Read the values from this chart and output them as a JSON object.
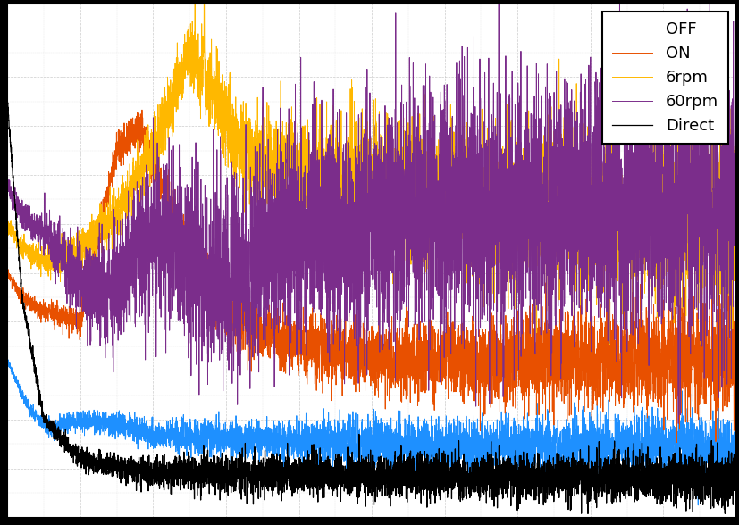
{
  "legend_labels": [
    "OFF",
    "ON",
    "6rpm",
    "60rpm",
    "Direct"
  ],
  "colors": [
    "#1E90FF",
    "#E85000",
    "#FFB800",
    "#7B2D8B",
    "#000000"
  ],
  "background_color": "#ffffff",
  "outer_background": "#000000",
  "legend_loc": "upper right",
  "legend_fontsize": 13,
  "linewidth": 0.7,
  "fig_width": 8.28,
  "fig_height": 5.88,
  "dpi": 100
}
